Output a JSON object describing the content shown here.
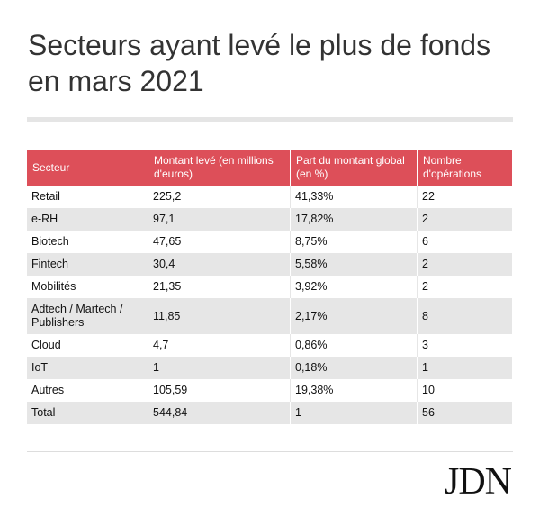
{
  "title": "Secteurs ayant levé le plus de fonds en mars 2021",
  "table": {
    "headers": [
      "Secteur",
      "Montant levé (en millions d'euros)",
      "Part du montant global (en %)",
      "Nombre d'opérations"
    ],
    "rows": [
      [
        "Retail",
        "225,2",
        "41,33%",
        "22"
      ],
      [
        "e-RH",
        "97,1",
        "17,82%",
        "2"
      ],
      [
        "Biotech",
        "47,65",
        "8,75%",
        "6"
      ],
      [
        "Fintech",
        "30,4",
        "5,58%",
        "2"
      ],
      [
        "Mobilités",
        "21,35",
        "3,92%",
        "2"
      ],
      [
        "Adtech / Martech / Publishers",
        "11,85",
        "2,17%",
        "8"
      ],
      [
        "Cloud",
        "4,7",
        "0,86%",
        "3"
      ],
      [
        "IoT",
        "1",
        "0,18%",
        "1"
      ],
      [
        "Autres",
        "105,59",
        "19,38%",
        "10"
      ],
      [
        "Total",
        "544,84",
        "1",
        "56"
      ]
    ]
  },
  "logo": "JDN",
  "colors": {
    "header_bg": "#dd4f59",
    "row_alt_bg": "#e6e6e6",
    "title_color": "#333333"
  }
}
